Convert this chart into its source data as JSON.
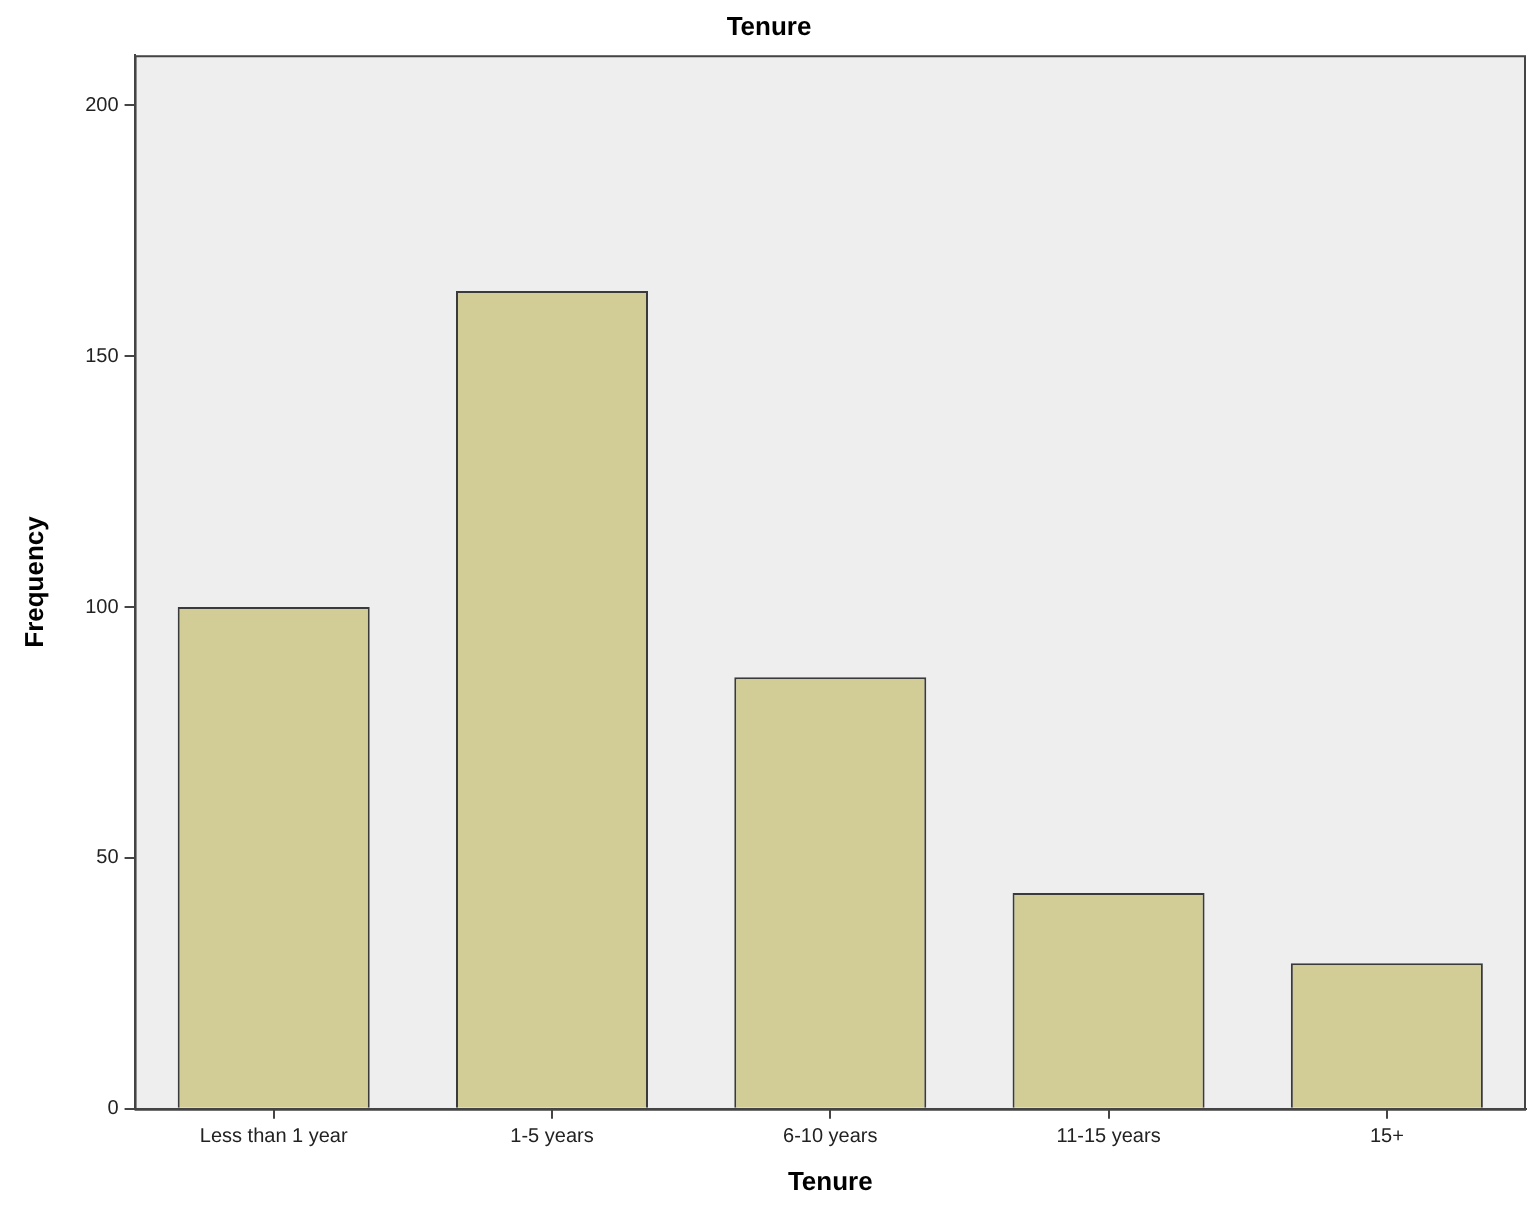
{
  "chart_data": {
    "type": "bar",
    "title": "Tenure",
    "xlabel": "Tenure",
    "ylabel": "Frequency",
    "categories": [
      "Less than 1 year",
      "1-5 years",
      "6-10 years",
      "11-15 years",
      "15+"
    ],
    "values": [
      100,
      163,
      86,
      43,
      29
    ],
    "color": "#d2cc96",
    "ylim": [
      0,
      210
    ],
    "yticks": [
      0,
      50,
      100,
      150,
      200
    ],
    "grid": false,
    "legend": false
  }
}
